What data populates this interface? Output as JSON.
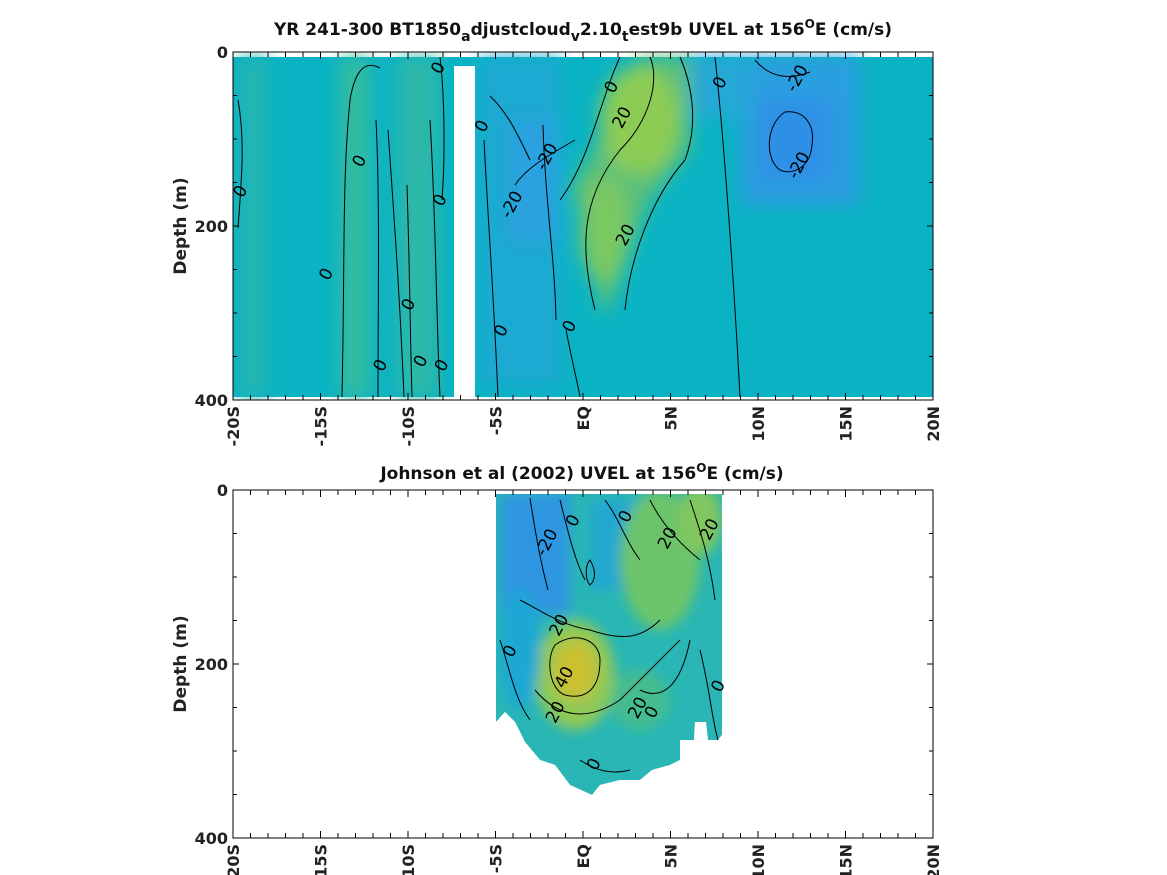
{
  "figure": {
    "panels": 2,
    "shared_x_ticks": [
      "-20S",
      "-15S",
      "-10S",
      "-5S",
      "EQ",
      "5N",
      "10N",
      "15N",
      "20N"
    ]
  },
  "chart_data": [
    {
      "type": "heatmap",
      "title_parts": [
        "YR 241-300 BT1850",
        "a",
        "djustcloud",
        "v",
        "2.10",
        "t",
        "est9b UVEL at 156",
        "O",
        "E (cm/s)"
      ],
      "ylabel": "Depth (m)",
      "xlabel": "",
      "x_range": [
        -20,
        20
      ],
      "y_range": [
        0,
        400
      ],
      "y_reversed": true,
      "y_ticks": [
        0,
        200,
        400
      ],
      "x_ticks": [
        -20,
        -15,
        -10,
        -5,
        0,
        5,
        10,
        15,
        20
      ],
      "x_tick_labels": [
        "-20S",
        "-15S",
        "-10S",
        "-5S",
        "EQ",
        "5N",
        "10N",
        "15N",
        "20N"
      ],
      "colormap": "parula",
      "contour_levels": [
        -20,
        0,
        20
      ],
      "missing_band_lat": [
        -7.2,
        -6.0
      ],
      "features": [
        {
          "name": "Eastward jet core (EUC)",
          "lat_center": 3.5,
          "depth_top": 0,
          "depth_bottom": 300,
          "max_cms": 30
        },
        {
          "name": "Westward flow",
          "lat_center": 12,
          "depth_top": 0,
          "depth_bottom": 150,
          "min_cms": -25
        },
        {
          "name": "Westward flow",
          "lat_center": -2.5,
          "depth_top": 80,
          "depth_bottom": 200,
          "min_cms": -22
        }
      ],
      "contour_labels": [
        {
          "text": "0",
          "lat": -19.6,
          "depth": 160
        },
        {
          "text": "0",
          "lat": -14.7,
          "depth": 255
        },
        {
          "text": "0",
          "lat": -12.8,
          "depth": 125
        },
        {
          "text": "0",
          "lat": -11.6,
          "depth": 360
        },
        {
          "text": "0",
          "lat": -10.0,
          "depth": 290
        },
        {
          "text": "0",
          "lat": -9.3,
          "depth": 355
        },
        {
          "text": "0",
          "lat": -8.2,
          "depth": 170
        },
        {
          "text": "0",
          "lat": -8.1,
          "depth": 360
        },
        {
          "text": "0",
          "lat": -8.3,
          "depth": 18
        },
        {
          "text": "0",
          "lat": -5.8,
          "depth": 85
        },
        {
          "text": "0",
          "lat": -4.7,
          "depth": 320
        },
        {
          "text": "-20",
          "lat": -4.1,
          "depth": 175
        },
        {
          "text": "-20",
          "lat": -2.1,
          "depth": 120
        },
        {
          "text": "0",
          "lat": -0.8,
          "depth": 315
        },
        {
          "text": "0",
          "lat": 1.6,
          "depth": 40
        },
        {
          "text": "20",
          "lat": 2.2,
          "depth": 75
        },
        {
          "text": "20",
          "lat": 2.4,
          "depth": 210
        },
        {
          "text": "0",
          "lat": 7.8,
          "depth": 35
        },
        {
          "text": "-20",
          "lat": 12.2,
          "depth": 30
        },
        {
          "text": "-20",
          "lat": 12.3,
          "depth": 130
        }
      ]
    },
    {
      "type": "heatmap",
      "title_parts": [
        "Johnson et al (2002) UVEL at 156",
        "O",
        "E (cm/s)"
      ],
      "ylabel": "Depth (m)",
      "xlabel": "",
      "x_range": [
        -20,
        20
      ],
      "y_range": [
        0,
        400
      ],
      "y_reversed": true,
      "y_ticks": [
        0,
        200,
        400
      ],
      "x_ticks": [
        -20,
        -15,
        -10,
        -5,
        0,
        5,
        10,
        15,
        20
      ],
      "x_tick_labels": [
        "-20S",
        "-15S",
        "-10S",
        "-5S",
        "EQ",
        "5N",
        "10N",
        "15N",
        "20N"
      ],
      "colormap": "parula",
      "contour_levels": [
        -20,
        0,
        20,
        40
      ],
      "data_lat_range": [
        -5,
        8
      ],
      "bottom_depth_profile": [
        [
          -5,
          265
        ],
        [
          -4,
          290
        ],
        [
          -3,
          315
        ],
        [
          -2,
          330
        ],
        [
          -1,
          340
        ],
        [
          0,
          355
        ],
        [
          1,
          340
        ],
        [
          2,
          335
        ],
        [
          3,
          320
        ],
        [
          4,
          310
        ],
        [
          5,
          300
        ],
        [
          6,
          285
        ],
        [
          7,
          280
        ],
        [
          8,
          285
        ]
      ],
      "features": [
        {
          "name": "Equatorial Undercurrent core",
          "lat_center": -1.0,
          "depth_center": 205,
          "max_cms": 45
        }
      ],
      "contour_labels": [
        {
          "text": "-20",
          "lat": -2.1,
          "depth": 60
        },
        {
          "text": "0",
          "lat": -0.6,
          "depth": 35
        },
        {
          "text": "0",
          "lat": 2.4,
          "depth": 30
        },
        {
          "text": "20",
          "lat": 4.8,
          "depth": 55
        },
        {
          "text": "20",
          "lat": 7.2,
          "depth": 45
        },
        {
          "text": "20",
          "lat": -1.4,
          "depth": 155
        },
        {
          "text": "0",
          "lat": -4.2,
          "depth": 185
        },
        {
          "text": "40",
          "lat": -1.1,
          "depth": 215
        },
        {
          "text": "20",
          "lat": -1.6,
          "depth": 255
        },
        {
          "text": "20",
          "lat": 3.1,
          "depth": 250
        },
        {
          "text": "0",
          "lat": 3.9,
          "depth": 255
        },
        {
          "text": "0",
          "lat": 7.7,
          "depth": 225
        },
        {
          "text": "0",
          "lat": 0.6,
          "depth": 315
        }
      ]
    }
  ]
}
